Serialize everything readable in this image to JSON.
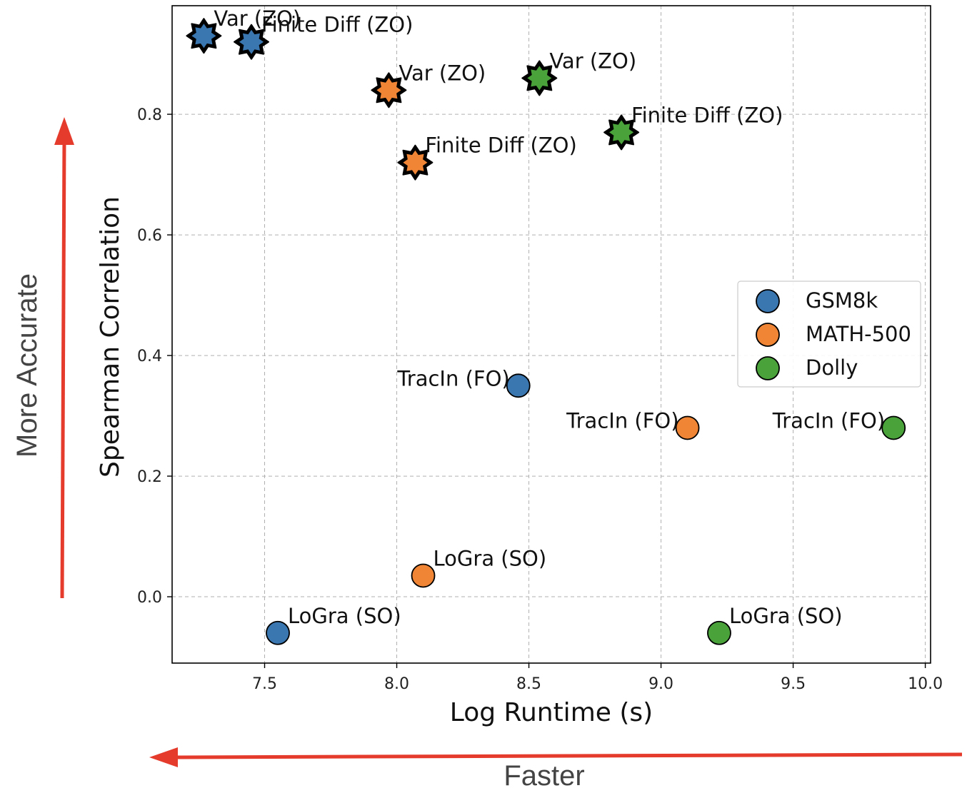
{
  "chart_data": {
    "type": "scatter",
    "xlabel": "Log Runtime (s)",
    "ylabel": "Spearman Correlation",
    "xlim": [
      7.15,
      10.02
    ],
    "ylim": [
      -0.11,
      0.98
    ],
    "xticks": [
      "7.5",
      "8.0",
      "8.5",
      "9.0",
      "9.5",
      "10.0"
    ],
    "xtick_values": [
      7.5,
      8.0,
      8.5,
      9.0,
      9.5,
      10.0
    ],
    "yticks": [
      "0.0",
      "0.2",
      "0.4",
      "0.6",
      "0.8"
    ],
    "ytick_values": [
      0.0,
      0.2,
      0.4,
      0.6,
      0.8
    ],
    "grid": true,
    "legend_position": "center-right",
    "series": [
      {
        "name": "GSM8k",
        "color": "#3a76b0",
        "points": [
          {
            "x": 7.27,
            "y": 0.93,
            "label": "Var (ZO)",
            "marker": "star"
          },
          {
            "x": 7.45,
            "y": 0.92,
            "label": "Finite Diff (ZO)",
            "marker": "star"
          },
          {
            "x": 8.46,
            "y": 0.35,
            "label": "TracIn (FO)",
            "marker": "circle"
          },
          {
            "x": 7.55,
            "y": -0.06,
            "label": "LoGra (SO)",
            "marker": "circle"
          }
        ]
      },
      {
        "name": "MATH-500",
        "color": "#f08536",
        "points": [
          {
            "x": 7.97,
            "y": 0.84,
            "label": "Var (ZO)",
            "marker": "star"
          },
          {
            "x": 8.07,
            "y": 0.72,
            "label": "Finite Diff (ZO)",
            "marker": "star"
          },
          {
            "x": 9.1,
            "y": 0.28,
            "label": "TracIn (FO)",
            "marker": "circle"
          },
          {
            "x": 8.1,
            "y": 0.035,
            "label": "LoGra (SO)",
            "marker": "circle"
          }
        ]
      },
      {
        "name": "Dolly",
        "color": "#4aa23b",
        "points": [
          {
            "x": 8.54,
            "y": 0.86,
            "label": "Var (ZO)",
            "marker": "star"
          },
          {
            "x": 8.85,
            "y": 0.77,
            "label": "Finite Diff (ZO)",
            "marker": "star"
          },
          {
            "x": 9.88,
            "y": 0.28,
            "label": "TracIn (FO)",
            "marker": "circle"
          },
          {
            "x": 9.22,
            "y": -0.06,
            "label": "LoGra (SO)",
            "marker": "circle"
          }
        ]
      }
    ]
  },
  "annotations": {
    "vertical_arrow_label": "More Accurate",
    "horizontal_arrow_label": "Faster",
    "arrow_color": "#e53b2c"
  }
}
